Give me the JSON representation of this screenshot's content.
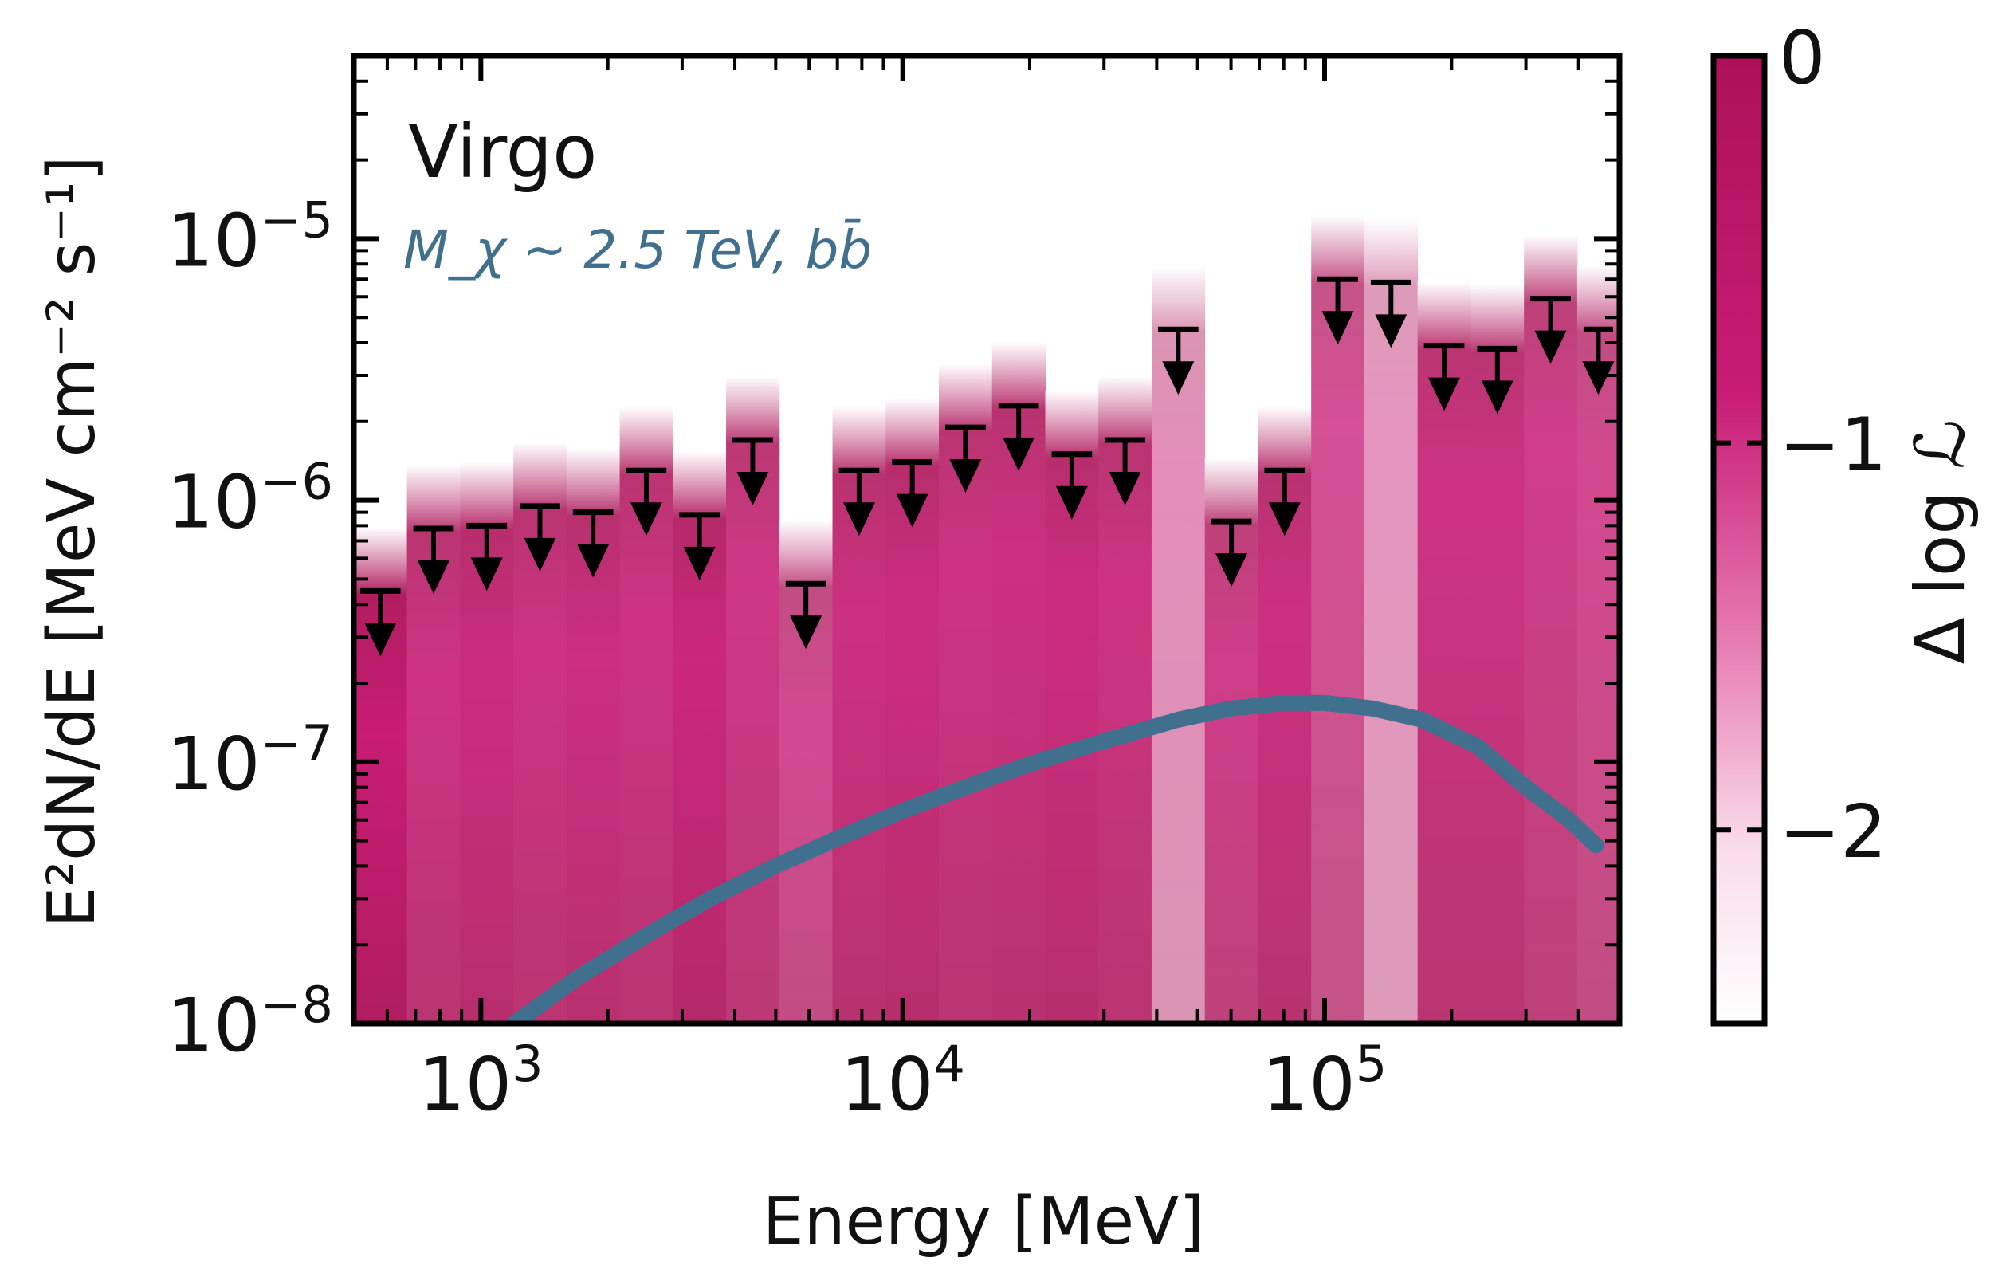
{
  "chart_data": {
    "type": "bar",
    "title": "Virgo",
    "subtitle": "M_χ ~ 2.5 TeV, bb̄",
    "xlabel": "Energy [MeV]",
    "ylabel": "E²dN/dE [MeV cm⁻² s⁻¹]",
    "xscale": "log",
    "yscale": "log",
    "xlim": [
      500,
      500000
    ],
    "ylim": [
      1e-08,
      5e-05
    ],
    "x_tick_labels": [
      {
        "base": "10",
        "exp": "3",
        "value": 1000
      },
      {
        "base": "10",
        "exp": "4",
        "value": 10000
      },
      {
        "base": "10",
        "exp": "5",
        "value": 100000
      }
    ],
    "y_tick_labels": [
      {
        "base": "10",
        "exp": "−8",
        "value": 1e-08
      },
      {
        "base": "10",
        "exp": "−7",
        "value": 1e-07
      },
      {
        "base": "10",
        "exp": "−6",
        "value": 1e-06
      },
      {
        "base": "10",
        "exp": "−5",
        "value": 1e-05
      }
    ],
    "upper_limits": {
      "name": "Energy bin upper limits",
      "bin_edges": [
        500,
        668,
        893,
        1194,
        1596,
        2134,
        2852,
        3813,
        5098,
        6815,
        9110,
        12180,
        16283,
        21768,
        29100,
        38902,
        52006,
        69525,
        92945,
        124255,
        166111,
        222066,
        296870,
        396873,
        500000
      ],
      "ul_values": [
        4.5e-07,
        7.8e-07,
        8e-07,
        9.5e-07,
        9e-07,
        1.3e-06,
        8.8e-07,
        1.7e-06,
        4.8e-07,
        1.3e-06,
        1.4e-06,
        1.9e-06,
        2.3e-06,
        1.5e-06,
        1.7e-06,
        4.5e-06,
        8.3e-07,
        1.3e-06,
        7e-06,
        6.8e-06,
        3.9e-06,
        3.8e-06,
        5.9e-06,
        4.5e-06
      ],
      "band_color_level": [
        0.95,
        0.85,
        0.88,
        0.85,
        0.87,
        0.85,
        0.9,
        0.83,
        0.75,
        0.86,
        0.88,
        0.85,
        0.86,
        0.88,
        0.85,
        0.45,
        0.8,
        0.86,
        0.72,
        0.42,
        0.85,
        0.85,
        0.8,
        0.75
      ]
    },
    "model_curve": {
      "name": "M_χ ~ 2.5 TeV, bb̄",
      "color": "#41708f",
      "points": [
        [
          1200,
          1e-08
        ],
        [
          1700,
          1.5e-08
        ],
        [
          2500,
          2.2e-08
        ],
        [
          3500,
          3e-08
        ],
        [
          5000,
          4e-08
        ],
        [
          7000,
          5.1e-08
        ],
        [
          10000,
          6.5e-08
        ],
        [
          15000,
          8.3e-08
        ],
        [
          20000,
          9.8e-08
        ],
        [
          30000,
          1.2e-07
        ],
        [
          45000,
          1.45e-07
        ],
        [
          60000,
          1.6e-07
        ],
        [
          80000,
          1.68e-07
        ],
        [
          100000,
          1.68e-07
        ],
        [
          130000,
          1.6e-07
        ],
        [
          170000,
          1.45e-07
        ],
        [
          230000,
          1.15e-07
        ],
        [
          300000,
          8e-08
        ],
        [
          380000,
          6e-08
        ],
        [
          440000,
          4.8e-08
        ]
      ]
    },
    "colorbar": {
      "label": "Δ log ℒ",
      "range": [
        -2.5,
        0
      ],
      "tick_values": [
        0,
        -1,
        -2
      ],
      "tick_labels": [
        "0",
        "−1",
        "−2"
      ],
      "color_high": "#ad1158",
      "color_low": "#ffffff"
    }
  }
}
